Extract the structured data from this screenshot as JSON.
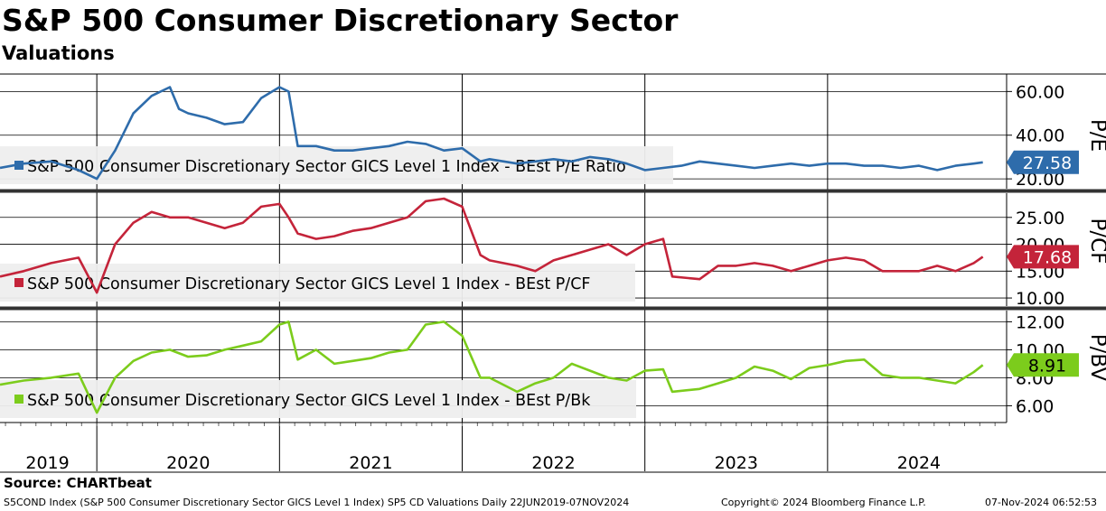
{
  "title": "S&P 500 Consumer Discretionary Sector",
  "subtitle": "Valuations",
  "source": "Source: CHARTbeat",
  "footer": {
    "description": "S5COND Index (S&P 500 Consumer Discretionary Sector GICS Level 1 Index) SP5 CD Valuations  Daily 22JUN2019-07NOV2024",
    "copyright": "Copyright© 2024 Bloomberg Finance L.P.",
    "timestamp": "07-Nov-2024 06:52:53"
  },
  "colors": {
    "pe": "#2e6cab",
    "pe_light": "#8fb1d8",
    "pcf": "#c4243a",
    "pcf_light": "#dd8a95",
    "pbk": "#7ccc1c",
    "pbk_light": "#b8e28a",
    "grid": "#000000",
    "legend_bg": "#eeeeee"
  },
  "chart_data": [
    {
      "type": "line",
      "ylabel": "P/E",
      "legend": "S&P 500 Consumer Discretionary Sector GICS Level 1 Index - BEst P/E Ratio",
      "ylim": [
        15.5,
        68
      ],
      "yticks": [
        "60.00",
        "40.00",
        "20.00"
      ],
      "ytick_values": [
        60,
        40,
        20
      ],
      "last_value_label": "27.58",
      "x": [
        2019.47,
        2019.6,
        2019.75,
        2019.9,
        2020.0,
        2020.1,
        2020.2,
        2020.3,
        2020.4,
        2020.45,
        2020.5,
        2020.6,
        2020.7,
        2020.8,
        2020.9,
        2021.0,
        2021.05,
        2021.1,
        2021.15,
        2021.2,
        2021.3,
        2021.4,
        2021.5,
        2021.6,
        2021.7,
        2021.8,
        2021.9,
        2022.0,
        2022.1,
        2022.15,
        2022.3,
        2022.4,
        2022.5,
        2022.6,
        2022.7,
        2022.8,
        2022.9,
        2023.0,
        2023.1,
        2023.2,
        2023.3,
        2023.4,
        2023.5,
        2023.6,
        2023.7,
        2023.8,
        2023.9,
        2024.0,
        2024.1,
        2024.2,
        2024.3,
        2024.4,
        2024.5,
        2024.6,
        2024.7,
        2024.8,
        2024.85
      ],
      "values": [
        25,
        27,
        28,
        24,
        20,
        33,
        50,
        58,
        62,
        52,
        50,
        48,
        45,
        46,
        57,
        62,
        60,
        35,
        35,
        35,
        33,
        33,
        34,
        35,
        37,
        36,
        33,
        34,
        28,
        29,
        27,
        28,
        29,
        28,
        30,
        29,
        27,
        24,
        25,
        26,
        28,
        27,
        26,
        25,
        26,
        27,
        26,
        27,
        27,
        26,
        26,
        25,
        26,
        24,
        26,
        27,
        27.58
      ],
      "xlim": [
        2019.47,
        2024.98
      ]
    },
    {
      "type": "line",
      "ylabel": "P/CF",
      "legend": "S&P 500 Consumer Discretionary Sector GICS Level 1 Index - BEst P/CF",
      "ylim": [
        8.5,
        29.5
      ],
      "yticks": [
        "25.00",
        "20.00",
        "15.00",
        "10.00"
      ],
      "ytick_values": [
        25,
        20,
        15,
        10
      ],
      "last_value_label": "17.68",
      "x": [
        2019.47,
        2019.6,
        2019.75,
        2019.9,
        2020.0,
        2020.1,
        2020.2,
        2020.3,
        2020.4,
        2020.5,
        2020.6,
        2020.7,
        2020.8,
        2020.9,
        2021.0,
        2021.05,
        2021.1,
        2021.2,
        2021.3,
        2021.4,
        2021.5,
        2021.6,
        2021.7,
        2021.8,
        2021.9,
        2022.0,
        2022.1,
        2022.15,
        2022.3,
        2022.4,
        2022.5,
        2022.6,
        2022.7,
        2022.8,
        2022.9,
        2023.0,
        2023.1,
        2023.15,
        2023.3,
        2023.4,
        2023.5,
        2023.6,
        2023.7,
        2023.8,
        2023.9,
        2024.0,
        2024.1,
        2024.2,
        2024.3,
        2024.4,
        2024.5,
        2024.6,
        2024.7,
        2024.8,
        2024.85
      ],
      "values": [
        14,
        15,
        16.5,
        17.5,
        11,
        20,
        24,
        26,
        25,
        25,
        24,
        23,
        24,
        27,
        27.5,
        25,
        22,
        21,
        21.5,
        22.5,
        23,
        24,
        25,
        28,
        28.5,
        27,
        18,
        17,
        16,
        15,
        17,
        18,
        19,
        20,
        18,
        20,
        21,
        14,
        13.5,
        16,
        16,
        16.5,
        16,
        15,
        16,
        17,
        17.5,
        17,
        15,
        15,
        15,
        16,
        15,
        16.5,
        17.68
      ],
      "xlim": [
        2019.47,
        2024.98
      ]
    },
    {
      "type": "line",
      "ylabel": "P/BV",
      "legend": "S&P 500 Consumer Discretionary Sector GICS Level 1 Index - BEst P/Bk",
      "ylim": [
        4.8,
        12.8
      ],
      "yticks": [
        "12.00",
        "10.00",
        "8.00",
        "6.00"
      ],
      "ytick_values": [
        12,
        10,
        8,
        6
      ],
      "last_value_label": "8.91",
      "x": [
        2019.47,
        2019.6,
        2019.75,
        2019.9,
        2020.0,
        2020.1,
        2020.2,
        2020.3,
        2020.4,
        2020.5,
        2020.6,
        2020.7,
        2020.8,
        2020.9,
        2021.0,
        2021.05,
        2021.1,
        2021.2,
        2021.3,
        2021.4,
        2021.5,
        2021.6,
        2021.7,
        2021.8,
        2021.9,
        2022.0,
        2022.1,
        2022.15,
        2022.3,
        2022.4,
        2022.5,
        2022.6,
        2022.7,
        2022.8,
        2022.9,
        2023.0,
        2023.1,
        2023.15,
        2023.3,
        2023.4,
        2023.5,
        2023.6,
        2023.7,
        2023.8,
        2023.9,
        2024.0,
        2024.1,
        2024.2,
        2024.3,
        2024.4,
        2024.5,
        2024.6,
        2024.7,
        2024.8,
        2024.85
      ],
      "values": [
        7.5,
        7.8,
        8.0,
        8.3,
        5.5,
        8.0,
        9.2,
        9.8,
        10.0,
        9.5,
        9.6,
        10.0,
        10.3,
        10.6,
        11.8,
        12.0,
        9.3,
        10.0,
        9.0,
        9.2,
        9.4,
        9.8,
        10.0,
        11.8,
        12.0,
        11.0,
        8.0,
        8.0,
        7.0,
        7.6,
        8.0,
        9.0,
        8.5,
        8.0,
        7.8,
        8.5,
        8.6,
        7.0,
        7.2,
        7.6,
        8.0,
        8.8,
        8.5,
        7.9,
        8.7,
        8.9,
        9.2,
        9.3,
        8.2,
        8.0,
        8.0,
        7.8,
        7.6,
        8.4,
        8.91
      ],
      "xlim": [
        2019.47,
        2024.98
      ]
    }
  ],
  "x_axis": {
    "year_labels": [
      "2019",
      "2020",
      "2021",
      "2022",
      "2023",
      "2024"
    ],
    "year_label_x": [
      2019.73,
      2020.5,
      2021.5,
      2022.5,
      2023.5,
      2024.5
    ],
    "year_starts": [
      2020,
      2021,
      2022,
      2023,
      2024
    ]
  }
}
